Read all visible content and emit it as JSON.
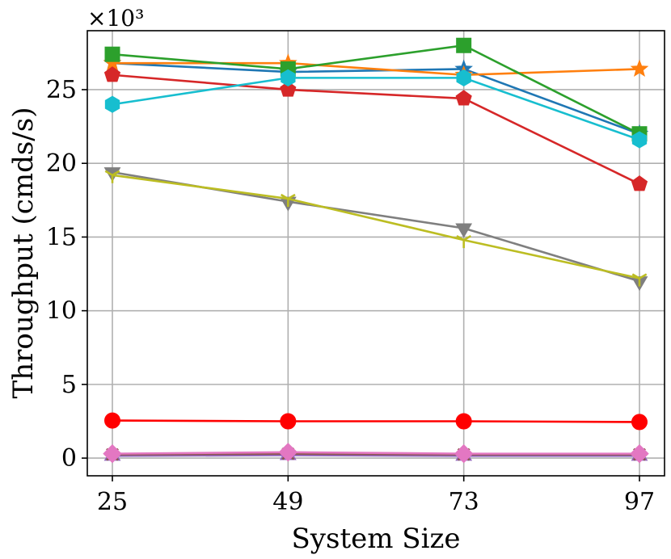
{
  "chart_data": {
    "type": "line",
    "title": "",
    "xlabel": "System Size",
    "ylabel": "Throughput (cmds/s)",
    "y_multiplier_label": "×10³",
    "x": [
      25,
      49,
      73,
      97
    ],
    "x_tick_labels": [
      "25",
      "49",
      "73",
      "97"
    ],
    "ylim": [
      -1.2,
      29.0
    ],
    "y_ticks": [
      0,
      5,
      10,
      15,
      20,
      25
    ],
    "y_tick_labels": [
      "0",
      "5",
      "10",
      "15",
      "20",
      "25"
    ],
    "grid": true,
    "legend": "none",
    "series": [
      {
        "name": "series-blue",
        "color": "#1f77b4",
        "marker": "star",
        "values": [
          26.8,
          26.2,
          26.4,
          22.0
        ]
      },
      {
        "name": "series-orange",
        "color": "#ff7f0e",
        "marker": "star",
        "values": [
          26.8,
          26.8,
          26.0,
          26.4
        ]
      },
      {
        "name": "series-green",
        "color": "#2ca02c",
        "marker": "square",
        "values": [
          27.4,
          26.4,
          28.0,
          22.0
        ]
      },
      {
        "name": "series-red",
        "color": "#d62728",
        "marker": "pentagon",
        "values": [
          26.0,
          25.0,
          24.4,
          18.6
        ]
      },
      {
        "name": "series-cyan",
        "color": "#17becf",
        "marker": "hexagon",
        "values": [
          24.0,
          25.8,
          25.8,
          21.6
        ]
      },
      {
        "name": "series-gray",
        "color": "#7f7f7f",
        "marker": "triangle-down",
        "values": [
          19.4,
          17.4,
          15.6,
          12.0
        ]
      },
      {
        "name": "series-olive",
        "color": "#bcbd22",
        "marker": "tri-down",
        "values": [
          19.2,
          17.6,
          14.8,
          12.2
        ]
      },
      {
        "name": "series-bright-red",
        "color": "#ff0000",
        "marker": "circle",
        "values": [
          2.55,
          2.5,
          2.5,
          2.45
        ]
      },
      {
        "name": "series-purple",
        "color": "#9467bd",
        "marker": "triangle-up",
        "values": [
          0.15,
          0.2,
          0.15,
          0.15
        ]
      },
      {
        "name": "series-brown",
        "color": "#8c564b",
        "marker": "x",
        "values": [
          0.25,
          0.3,
          0.25,
          0.25
        ]
      },
      {
        "name": "series-pink",
        "color": "#e377c2",
        "marker": "diamond",
        "values": [
          0.3,
          0.4,
          0.3,
          0.3
        ]
      }
    ]
  }
}
